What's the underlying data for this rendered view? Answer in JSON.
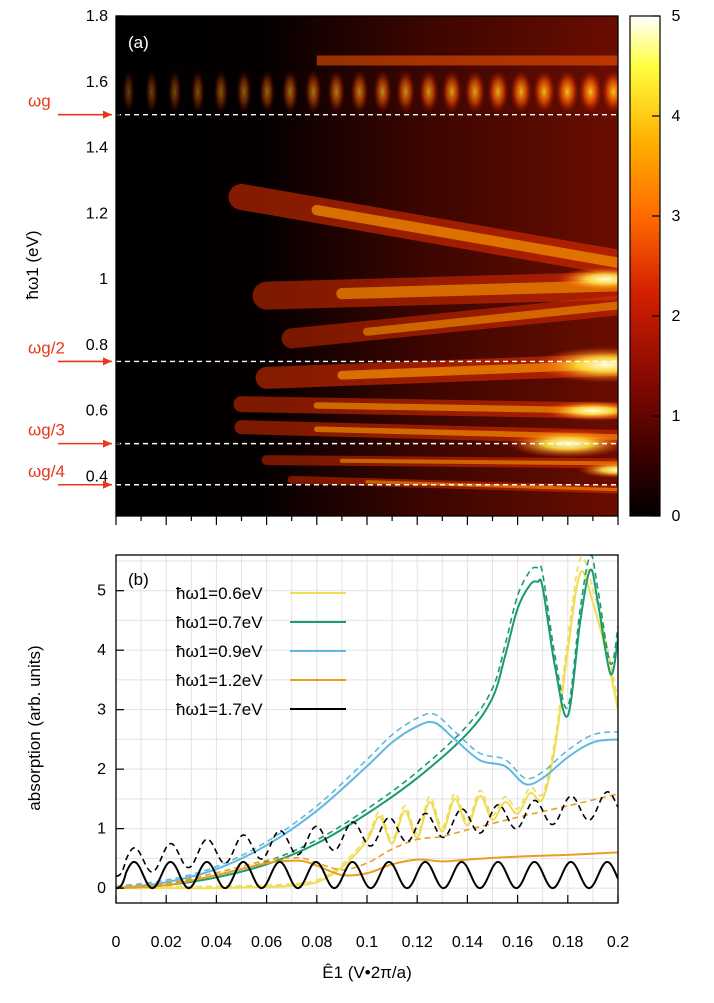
{
  "chart_data": [
    {
      "panel_label": "(a)",
      "type": "heatmap",
      "ylabel": "ħω1 (eV)",
      "ylim": [
        0.28,
        1.8
      ],
      "xlim": [
        0,
        0.2
      ],
      "ytick_labels": [
        "0.4",
        "0.6",
        "0.8",
        "1",
        "1.2",
        "1.4",
        "1.6",
        "1.8"
      ],
      "yticks": [
        0.4,
        0.6,
        0.8,
        1.0,
        1.2,
        1.4,
        1.6,
        1.8
      ],
      "colorbar": {
        "range": [
          0,
          5
        ],
        "tick_labels": [
          "0",
          "1",
          "2",
          "3",
          "4",
          "5"
        ],
        "ticks": [
          0,
          1,
          2,
          3,
          4,
          5
        ],
        "colormap": [
          "#000000",
          "#3b0000",
          "#8a0a00",
          "#d42000",
          "#ff6a00",
          "#ffb000",
          "#ffff40",
          "#ffffff"
        ]
      },
      "reference_lines": [
        {
          "label": "ωg",
          "value": 1.5
        },
        {
          "label": "ωg/2",
          "value": 0.75
        },
        {
          "label": "ωg/3",
          "value": 0.5
        },
        {
          "label": "ωg/4",
          "value": 0.375
        }
      ],
      "marker_color": "#e8381c"
    },
    {
      "panel_label": "(b)",
      "type": "line",
      "xlabel": "Ê1 (V•2π/a)",
      "ylabel": "absorption (arb. units)",
      "xlim": [
        0,
        0.2
      ],
      "ylim": [
        -0.25,
        5.6
      ],
      "xtick_labels": [
        "0",
        "0.02",
        "0.04",
        "0.06",
        "0.08",
        "0.1",
        "0.12",
        "0.14",
        "0.16",
        "0.18",
        "0.2"
      ],
      "xticks": [
        0,
        0.02,
        0.04,
        0.06,
        0.08,
        0.1,
        0.12,
        0.14,
        0.16,
        0.18,
        0.2
      ],
      "ytick_labels": [
        "0",
        "1",
        "2",
        "3",
        "4",
        "5"
      ],
      "yticks": [
        0,
        1,
        2,
        3,
        4,
        5
      ],
      "grid": true,
      "legend_position": "top-left",
      "series": [
        {
          "name": "ħω1=0.6eV",
          "color": "#eedd55",
          "x": [
            0,
            0.02,
            0.04,
            0.06,
            0.07,
            0.08,
            0.09,
            0.1,
            0.105,
            0.11,
            0.115,
            0.12,
            0.125,
            0.13,
            0.135,
            0.14,
            0.145,
            0.15,
            0.155,
            0.16,
            0.165,
            0.17,
            0.175,
            0.18,
            0.185,
            0.19,
            0.195,
            0.2
          ],
          "y": [
            0,
            0,
            0,
            0.02,
            0.04,
            0.1,
            0.35,
            0.8,
            1.2,
            0.75,
            1.3,
            0.85,
            1.45,
            0.95,
            1.5,
            1.05,
            1.55,
            1.15,
            1.45,
            1.25,
            1.6,
            1.5,
            2.4,
            4.0,
            5.3,
            4.8,
            4.0,
            3.0
          ]
        },
        {
          "name": "ħω1=0.7eV",
          "color": "#1a9a72",
          "x": [
            0,
            0.02,
            0.04,
            0.06,
            0.08,
            0.1,
            0.12,
            0.14,
            0.15,
            0.155,
            0.16,
            0.165,
            0.168,
            0.17,
            0.175,
            0.18,
            0.185,
            0.189,
            0.192,
            0.197,
            0.2
          ],
          "y": [
            0,
            0.05,
            0.18,
            0.4,
            0.75,
            1.25,
            1.85,
            2.6,
            3.2,
            3.9,
            4.7,
            5.1,
            5.15,
            5.05,
            3.7,
            2.9,
            4.5,
            5.35,
            4.8,
            3.6,
            4.2
          ]
        },
        {
          "name": "ħω1=0.9eV",
          "color": "#5fb8e0",
          "x": [
            0,
            0.02,
            0.04,
            0.06,
            0.08,
            0.1,
            0.11,
            0.12,
            0.127,
            0.135,
            0.145,
            0.155,
            0.163,
            0.17,
            0.18,
            0.19,
            0.2
          ],
          "y": [
            0,
            0.1,
            0.32,
            0.72,
            1.3,
            2.05,
            2.45,
            2.72,
            2.78,
            2.5,
            2.15,
            2.05,
            1.75,
            1.85,
            2.2,
            2.45,
            2.5
          ]
        },
        {
          "name": "ħω1=1.2eV",
          "color": "#e8a020",
          "x": [
            0,
            0.02,
            0.04,
            0.06,
            0.07,
            0.075,
            0.08,
            0.09,
            0.1,
            0.11,
            0.12,
            0.13,
            0.14,
            0.16,
            0.18,
            0.2
          ],
          "y": [
            0,
            0.05,
            0.22,
            0.42,
            0.46,
            0.45,
            0.38,
            0.22,
            0.25,
            0.4,
            0.48,
            0.45,
            0.48,
            0.53,
            0.56,
            0.6
          ]
        },
        {
          "name": "ħω1=1.7eV",
          "color": "#000000",
          "oscillating": true,
          "period": 0.0145,
          "amplitude": 0.22,
          "baseline": 0.22
        }
      ]
    }
  ]
}
